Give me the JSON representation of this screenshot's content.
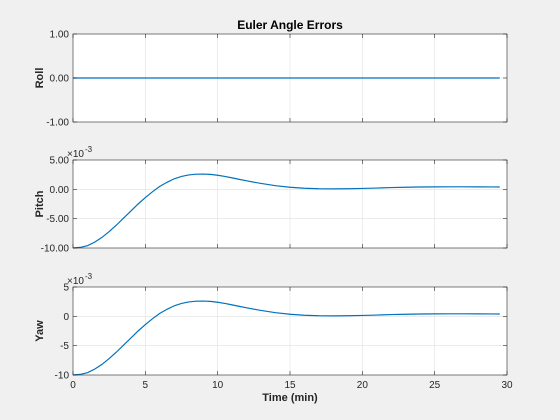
{
  "chart_data": [
    {
      "type": "line",
      "title": "Euler Angle Errors",
      "ylabel": "Roll",
      "xlabel": "",
      "xlim": [
        0,
        30
      ],
      "ylim": [
        -1,
        1
      ],
      "xticks": [
        0,
        5,
        10,
        15,
        20,
        25,
        30
      ],
      "show_xtick_labels": false,
      "yticks": [
        -1,
        0,
        1
      ],
      "ytick_labels": [
        "-1.00",
        "0.00",
        "1.00"
      ],
      "exponent_label": "",
      "grid": true,
      "series": [
        {
          "x": [
            0,
            29.5
          ],
          "y": [
            0,
            0
          ]
        }
      ]
    },
    {
      "type": "line",
      "title": "",
      "ylabel": "Pitch",
      "xlabel": "",
      "xlim": [
        0,
        30
      ],
      "ylim": [
        -10,
        5
      ],
      "xticks": [
        0,
        5,
        10,
        15,
        20,
        25,
        30
      ],
      "show_xtick_labels": false,
      "yticks": [
        -10,
        -5,
        0,
        5
      ],
      "ytick_labels": [
        "-10.00",
        "-5.00",
        "0.00",
        "5.00"
      ],
      "exponent_label": "×10",
      "exponent_power": "-3",
      "grid": true,
      "series": [
        {
          "x": [
            0,
            0.5,
            1,
            1.5,
            2,
            2.5,
            3,
            3.5,
            4,
            4.5,
            5,
            5.5,
            6,
            6.5,
            7,
            7.5,
            8,
            8.5,
            9,
            9.5,
            10,
            10.5,
            11,
            11.5,
            12,
            13,
            14,
            15,
            16,
            17,
            18,
            19,
            20,
            21,
            22,
            23,
            24,
            25,
            26,
            27,
            28,
            29,
            29.5
          ],
          "y": [
            -10,
            -9.9,
            -9.6,
            -9.0,
            -8.2,
            -7.2,
            -6.1,
            -4.9,
            -3.7,
            -2.5,
            -1.4,
            -0.4,
            0.5,
            1.2,
            1.8,
            2.2,
            2.45,
            2.58,
            2.6,
            2.55,
            2.4,
            2.2,
            1.95,
            1.7,
            1.45,
            1.0,
            0.62,
            0.35,
            0.18,
            0.1,
            0.08,
            0.1,
            0.15,
            0.22,
            0.3,
            0.36,
            0.4,
            0.42,
            0.43,
            0.43,
            0.42,
            0.41,
            0.4
          ]
        }
      ]
    },
    {
      "type": "line",
      "title": "",
      "ylabel": "Yaw",
      "xlabel": "Time (min)",
      "xlim": [
        0,
        30
      ],
      "ylim": [
        -10,
        5
      ],
      "xticks": [
        0,
        5,
        10,
        15,
        20,
        25,
        30
      ],
      "show_xtick_labels": true,
      "xtick_labels": [
        "0",
        "5",
        "10",
        "15",
        "20",
        "25",
        "30"
      ],
      "yticks": [
        -10,
        -5,
        0,
        5
      ],
      "ytick_labels": [
        "-10",
        "-5",
        "0",
        "5"
      ],
      "exponent_label": "×10",
      "exponent_power": "-3",
      "grid": true,
      "series": [
        {
          "x": [
            0,
            0.5,
            1,
            1.5,
            2,
            2.5,
            3,
            3.5,
            4,
            4.5,
            5,
            5.5,
            6,
            6.5,
            7,
            7.5,
            8,
            8.5,
            9,
            9.5,
            10,
            10.5,
            11,
            11.5,
            12,
            13,
            14,
            15,
            16,
            17,
            18,
            19,
            20,
            21,
            22,
            23,
            24,
            25,
            26,
            27,
            28,
            29,
            29.5
          ],
          "y": [
            -10,
            -9.9,
            -9.6,
            -9.0,
            -8.2,
            -7.2,
            -6.1,
            -4.9,
            -3.7,
            -2.5,
            -1.4,
            -0.4,
            0.5,
            1.2,
            1.8,
            2.2,
            2.45,
            2.58,
            2.6,
            2.55,
            2.4,
            2.2,
            1.95,
            1.7,
            1.45,
            1.0,
            0.62,
            0.35,
            0.18,
            0.1,
            0.08,
            0.1,
            0.15,
            0.22,
            0.3,
            0.36,
            0.4,
            0.42,
            0.43,
            0.43,
            0.42,
            0.41,
            0.4
          ]
        }
      ]
    }
  ],
  "colors": {
    "figure_background": "#f0f0f0",
    "axes_background": "#ffffff",
    "line": "#0072bd",
    "grid": "#dfdfdf",
    "axis": "#262626"
  }
}
